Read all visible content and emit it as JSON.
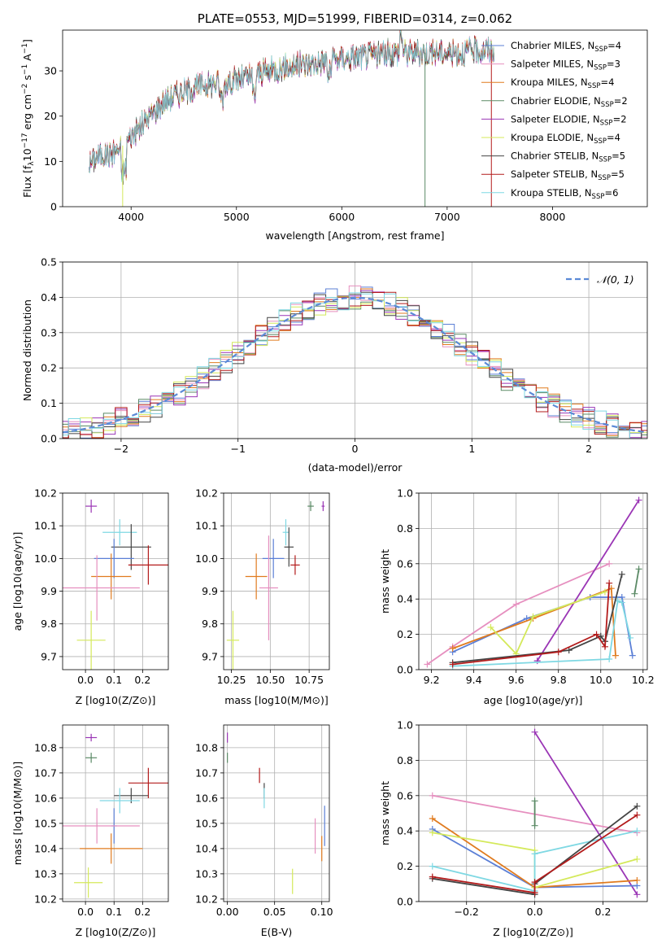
{
  "chart_data": [
    {
      "type": "line",
      "id": "spectrum",
      "title": "PLATE=0553, MJD=51999, FIBERID=0314, z=0.062",
      "xlabel": "wavelength [Angstrom, rest frame]",
      "ylabel": "Flux [f_λ10^{-17} erg cm^{-2} s^{-1} A^{-1}]",
      "xlim": [
        3350,
        8900
      ],
      "ylim": [
        0,
        39
      ],
      "xticks": [
        4000,
        5000,
        6000,
        7000,
        8000
      ],
      "yticks": [
        0,
        10,
        20,
        30
      ],
      "legend_position": "top-right",
      "x": [
        3600,
        3700,
        3800,
        3900,
        4000,
        4100,
        4200,
        4300,
        4400,
        4500,
        4700,
        4900,
        5100,
        5300,
        5500,
        5700,
        5900,
        6100,
        6300,
        6500,
        6700,
        6900,
        7100,
        7300,
        7600,
        7900,
        8200,
        8500,
        8800
      ],
      "values": [
        9.5,
        11.5,
        11.5,
        13,
        15.5,
        18,
        20.5,
        23,
        24.5,
        25.5,
        27,
        27.5,
        28.5,
        30,
        31,
        31.5,
        32.5,
        33,
        33.5,
        34,
        34,
        34,
        34,
        34.5,
        35,
        35,
        34.5,
        34,
        33.5
      ],
      "series": [
        {
          "name": "Chabrier MILES, N_{SSP}=4",
          "label": "Chabrier MILES, N",
          "sub": "SSP",
          "suffix": "=4",
          "color": "#5b7fd6",
          "offset": 0.0
        },
        {
          "name": "Salpeter MILES, N_{SSP}=3",
          "label": "Salpeter MILES, N",
          "sub": "SSP",
          "suffix": "=3",
          "color": "#e68fbf",
          "offset": 0.3
        },
        {
          "name": "Kroupa MILES, N_{SSP}=4",
          "label": "Kroupa MILES, N",
          "sub": "SSP",
          "suffix": "=4",
          "color": "#e07b1f",
          "offset": -0.2
        },
        {
          "name": "Chabrier ELODIE, N_{SSP}=2",
          "label": "Chabrier ELODIE, N",
          "sub": "SSP",
          "suffix": "=2",
          "color": "#5b8a66",
          "offset": 0.2
        },
        {
          "name": "Salpeter ELODIE, N_{SSP}=2",
          "label": "Salpeter ELODIE, N",
          "sub": "SSP",
          "suffix": "=2",
          "color": "#9a35b5",
          "offset": -0.3
        },
        {
          "name": "Kroupa ELODIE, N_{SSP}=4",
          "label": "Kroupa ELODIE, N",
          "sub": "SSP",
          "suffix": "=4",
          "color": "#d4e95a",
          "offset": 0.1
        },
        {
          "name": "Chabrier STELIB, N_{SSP}=5",
          "label": "Chabrier STELIB, N",
          "sub": "SSP",
          "suffix": "=5",
          "color": "#444444",
          "offset": -0.1
        },
        {
          "name": "Salpeter STELIB, N_{SSP}=5",
          "label": "Salpeter STELIB, N",
          "sub": "SSP",
          "suffix": "=5",
          "color": "#b31b1b",
          "offset": 0.25
        },
        {
          "name": "Kroupa STELIB, N_{SSP}=6",
          "label": "Kroupa STELIB, N",
          "sub": "SSP",
          "suffix": "=6",
          "color": "#7fd8e3",
          "offset": 0.0
        }
      ],
      "dips": [
        {
          "x": 3920,
          "y": 0,
          "color": "#d4e95a"
        },
        {
          "x": 6790,
          "y": 0,
          "color": "#5b8a66"
        },
        {
          "x": 7420,
          "y": 0,
          "color": "#b31b1b"
        }
      ]
    },
    {
      "type": "bar",
      "id": "residuals",
      "xlabel": "(data-model)/error",
      "ylabel": "Normed distribution",
      "xlim": [
        -2.5,
        2.5
      ],
      "ylim": [
        0,
        0.5
      ],
      "xticks": [
        -2,
        -1,
        0,
        1,
        2
      ],
      "yticks": [
        0.0,
        0.1,
        0.2,
        0.3,
        0.4,
        0.5
      ],
      "bin_width": 0.1,
      "legend_position": "top-right",
      "reference_curve": {
        "label": "𝒩(0, 1)",
        "color": "#5b8ad6",
        "mean": 0,
        "sigma": 1
      }
    },
    {
      "type": "scatter",
      "id": "age-vs-Z",
      "xlabel": "Z [log10(Z/Z⊙)]",
      "ylabel": "age  [log10(age/yr)]",
      "xlim": [
        -0.08,
        0.29
      ],
      "ylim": [
        9.66,
        10.2
      ],
      "xticks": [
        0.0,
        0.1,
        0.2
      ],
      "yticks": [
        9.7,
        9.8,
        9.9,
        10.0,
        10.1,
        10.2
      ],
      "points": [
        {
          "x": 0.02,
          "y": 10.16,
          "xerr": 0.02,
          "yerr": 0.02,
          "color": "#9a35b5"
        },
        {
          "x": 0.12,
          "y": 10.08,
          "xerr": 0.06,
          "yerr": 0.04,
          "color": "#7fd8e3"
        },
        {
          "x": 0.16,
          "y": 10.035,
          "xerr": 0.07,
          "yerr": 0.07,
          "color": "#444444"
        },
        {
          "x": 0.1,
          "y": 10.0,
          "xerr": 0.07,
          "yerr": 0.06,
          "color": "#5b7fd6"
        },
        {
          "x": 0.22,
          "y": 9.98,
          "xerr": 0.07,
          "yerr": 0.06,
          "color": "#b31b1b"
        },
        {
          "x": 0.09,
          "y": 9.945,
          "xerr": 0.07,
          "yerr": 0.07,
          "color": "#e07b1f"
        },
        {
          "x": 0.04,
          "y": 9.91,
          "xerr": 0.15,
          "yerr": 0.1,
          "color": "#e68fbf"
        },
        {
          "x": 0.02,
          "y": 9.75,
          "xerr": 0.05,
          "yerr": 0.09,
          "color": "#d4e95a"
        }
      ]
    },
    {
      "type": "scatter",
      "id": "age-vs-mass",
      "xlabel": "mass [log10(M/M⊙)]",
      "xlim": [
        10.2,
        10.88
      ],
      "ylim": [
        9.66,
        10.2
      ],
      "xticks": [
        10.25,
        10.5,
        10.75
      ],
      "yticks": [
        9.7,
        9.8,
        9.9,
        10.0,
        10.1,
        10.2
      ],
      "points": [
        {
          "x": 10.84,
          "y": 10.16,
          "xerr": 0.01,
          "yerr": 0.015,
          "color": "#9a35b5"
        },
        {
          "x": 10.76,
          "y": 10.16,
          "xerr": 0.02,
          "yerr": 0.015,
          "color": "#5b8a66"
        },
        {
          "x": 10.6,
          "y": 10.08,
          "xerr": 0.02,
          "yerr": 0.04,
          "color": "#7fd8e3"
        },
        {
          "x": 10.62,
          "y": 10.035,
          "xerr": 0.03,
          "yerr": 0.06,
          "color": "#444444"
        },
        {
          "x": 10.52,
          "y": 10.0,
          "xerr": 0.07,
          "yerr": 0.06,
          "color": "#5b7fd6"
        },
        {
          "x": 10.66,
          "y": 9.98,
          "xerr": 0.03,
          "yerr": 0.03,
          "color": "#b31b1b"
        },
        {
          "x": 10.41,
          "y": 9.945,
          "xerr": 0.07,
          "yerr": 0.07,
          "color": "#e07b1f"
        },
        {
          "x": 10.49,
          "y": 9.91,
          "xerr": 0.06,
          "yerr": 0.16,
          "color": "#e68fbf"
        },
        {
          "x": 10.26,
          "y": 9.75,
          "xerr": 0.04,
          "yerr": 0.09,
          "color": "#d4e95a"
        }
      ]
    },
    {
      "type": "line",
      "id": "weight-vs-age",
      "xlabel": "age  [log10(age/yr)]",
      "ylabel": "mass weight",
      "xlim": [
        9.14,
        10.22
      ],
      "ylim": [
        0,
        1
      ],
      "xticks": [
        9.2,
        9.4,
        9.6,
        9.8,
        10.0,
        10.2
      ],
      "yticks": [
        0.0,
        0.2,
        0.4,
        0.6,
        0.8,
        1.0
      ],
      "series": [
        {
          "color": "#e68fbf",
          "points": [
            [
              9.18,
              0.03
            ],
            [
              9.3,
              0.13
            ],
            [
              9.6,
              0.37
            ],
            [
              10.04,
              0.6
            ]
          ]
        },
        {
          "color": "#9a35b5",
          "points": [
            [
              9.7,
              0.05
            ],
            [
              10.18,
              0.96
            ]
          ]
        },
        {
          "color": "#5b7fd6",
          "points": [
            [
              9.3,
              0.1
            ],
            [
              9.65,
              0.29
            ],
            [
              9.95,
              0.41
            ],
            [
              10.1,
              0.41
            ],
            [
              10.15,
              0.08
            ]
          ]
        },
        {
          "color": "#e07b1f",
          "points": [
            [
              9.3,
              0.12
            ],
            [
              9.68,
              0.29
            ],
            [
              10.05,
              0.46
            ],
            [
              10.07,
              0.08
            ]
          ]
        },
        {
          "color": "#d4e95a",
          "points": [
            [
              9.48,
              0.24
            ],
            [
              9.6,
              0.09
            ],
            [
              9.68,
              0.3
            ],
            [
              10.02,
              0.44
            ]
          ]
        },
        {
          "color": "#7fd8e3",
          "points": [
            [
              9.3,
              0.02
            ],
            [
              10.04,
              0.06
            ],
            [
              10.08,
              0.39
            ],
            [
              10.1,
              0.38
            ],
            [
              10.14,
              0.18
            ]
          ]
        },
        {
          "color": "#444444",
          "points": [
            [
              9.3,
              0.04
            ],
            [
              9.85,
              0.11
            ],
            [
              10.0,
              0.19
            ],
            [
              10.02,
              0.16
            ],
            [
              10.1,
              0.54
            ]
          ]
        },
        {
          "color": "#b31b1b",
          "points": [
            [
              9.3,
              0.03
            ],
            [
              9.8,
              0.1
            ],
            [
              9.98,
              0.2
            ],
            [
              10.02,
              0.13
            ],
            [
              10.04,
              0.49
            ]
          ]
        },
        {
          "color": "#5b8a66",
          "points": [
            [
              10.16,
              0.43
            ],
            [
              10.18,
              0.57
            ]
          ]
        }
      ]
    },
    {
      "type": "scatter",
      "id": "mass-vs-Z",
      "xlabel": "Z [log10(Z/Z⊙)]",
      "ylabel": "mass [log10(M/M⊙)]",
      "xlim": [
        -0.08,
        0.29
      ],
      "ylim": [
        10.19,
        10.89
      ],
      "xticks": [
        0.0,
        0.1,
        0.2
      ],
      "yticks": [
        10.2,
        10.3,
        10.4,
        10.5,
        10.6,
        10.7,
        10.8
      ],
      "points": [
        {
          "x": 0.02,
          "y": 10.84,
          "xerr": 0.02,
          "yerr": 0.015,
          "color": "#9a35b5"
        },
        {
          "x": 0.02,
          "y": 10.76,
          "xerr": 0.02,
          "yerr": 0.02,
          "color": "#5b8a66"
        },
        {
          "x": 0.22,
          "y": 10.66,
          "xerr": 0.07,
          "yerr": 0.06,
          "color": "#b31b1b"
        },
        {
          "x": 0.16,
          "y": 10.61,
          "xerr": 0.06,
          "yerr": 0.03,
          "color": "#444444"
        },
        {
          "x": 0.12,
          "y": 10.59,
          "xerr": 0.07,
          "yerr": 0.05,
          "color": "#7fd8e3"
        },
        {
          "x": 0.1,
          "y": 10.49,
          "xerr": 0.01,
          "yerr": 0.07,
          "color": "#5b7fd6"
        },
        {
          "x": 0.04,
          "y": 10.49,
          "xerr": 0.15,
          "yerr": 0.07,
          "color": "#e68fbf"
        },
        {
          "x": 0.09,
          "y": 10.4,
          "xerr": 0.11,
          "yerr": 0.06,
          "color": "#e07b1f"
        },
        {
          "x": 0.01,
          "y": 10.265,
          "xerr": 0.05,
          "yerr": 0.06,
          "color": "#d4e95a"
        }
      ]
    },
    {
      "type": "scatter",
      "id": "mass-vs-ebv",
      "xlabel": "E(B-V)",
      "xlim": [
        -0.004,
        0.108
      ],
      "ylim": [
        10.19,
        10.89
      ],
      "xticks": [
        0.0,
        0.05,
        0.1
      ],
      "xticklabels": [
        "0.00",
        "0.05",
        "0.10"
      ],
      "yticks": [
        10.2,
        10.3,
        10.4,
        10.5,
        10.6,
        10.7,
        10.8
      ],
      "points": [
        {
          "x": 0.0,
          "y": 10.84,
          "xerr": 0,
          "yerr": 0.02,
          "color": "#9a35b5"
        },
        {
          "x": 0.0,
          "y": 10.76,
          "xerr": 0,
          "yerr": 0.02,
          "color": "#5b8a66"
        },
        {
          "x": 0.034,
          "y": 10.69,
          "xerr": 0,
          "yerr": 0.03,
          "color": "#b31b1b"
        },
        {
          "x": 0.039,
          "y": 10.63,
          "xerr": 0,
          "yerr": 0.03,
          "color": "#444444"
        },
        {
          "x": 0.039,
          "y": 10.6,
          "xerr": 0,
          "yerr": 0.04,
          "color": "#7fd8e3"
        },
        {
          "x": 0.103,
          "y": 10.49,
          "xerr": 0,
          "yerr": 0.08,
          "color": "#5b7fd6"
        },
        {
          "x": 0.093,
          "y": 10.45,
          "xerr": 0,
          "yerr": 0.07,
          "color": "#e68fbf"
        },
        {
          "x": 0.1,
          "y": 10.4,
          "xerr": 0,
          "yerr": 0.05,
          "color": "#e07b1f"
        },
        {
          "x": 0.069,
          "y": 10.27,
          "xerr": 0,
          "yerr": 0.05,
          "color": "#d4e95a"
        }
      ]
    },
    {
      "type": "line",
      "id": "weight-vs-Z",
      "xlabel": "Z [log10(Z/Z⊙)]",
      "ylabel": "mass weight",
      "xlim": [
        -0.34,
        0.33
      ],
      "ylim": [
        0,
        1
      ],
      "xticks": [
        -0.2,
        0.0,
        0.2
      ],
      "yticks": [
        0.0,
        0.2,
        0.4,
        0.6,
        0.8,
        1.0
      ],
      "series": [
        {
          "color": "#e68fbf",
          "points": [
            [
              -0.3,
              0.6
            ],
            [
              0.3,
              0.39
            ]
          ]
        },
        {
          "color": "#9a35b5",
          "points": [
            [
              0.0,
              0.96
            ],
            [
              0.3,
              0.04
            ]
          ]
        },
        {
          "color": "#5b7fd6",
          "points": [
            [
              -0.3,
              0.41
            ],
            [
              0.0,
              0.08
            ],
            [
              0.3,
              0.09
            ]
          ]
        },
        {
          "color": "#e07b1f",
          "points": [
            [
              -0.3,
              0.47
            ],
            [
              0.0,
              0.08
            ],
            [
              0.3,
              0.12
            ]
          ]
        },
        {
          "color": "#d4e95a",
          "points": [
            [
              -0.3,
              0.39
            ],
            [
              0.0,
              0.29
            ],
            [
              0.0,
              0.08
            ],
            [
              0.3,
              0.24
            ]
          ]
        },
        {
          "color": "#7fd8e3",
          "points": [
            [
              -0.3,
              0.2
            ],
            [
              0.0,
              0.06
            ],
            [
              0.0,
              0.27
            ],
            [
              0.3,
              0.4
            ]
          ]
        },
        {
          "color": "#444444",
          "points": [
            [
              -0.3,
              0.13
            ],
            [
              0.0,
              0.04
            ],
            [
              0.0,
              0.1
            ],
            [
              0.3,
              0.54
            ]
          ]
        },
        {
          "color": "#b31b1b",
          "points": [
            [
              -0.3,
              0.14
            ],
            [
              0.0,
              0.05
            ],
            [
              0.0,
              0.11
            ],
            [
              0.3,
              0.49
            ]
          ]
        },
        {
          "color": "#5b8a66",
          "points": [
            [
              0.0,
              0.43
            ],
            [
              0.0,
              0.57
            ]
          ]
        }
      ]
    }
  ]
}
